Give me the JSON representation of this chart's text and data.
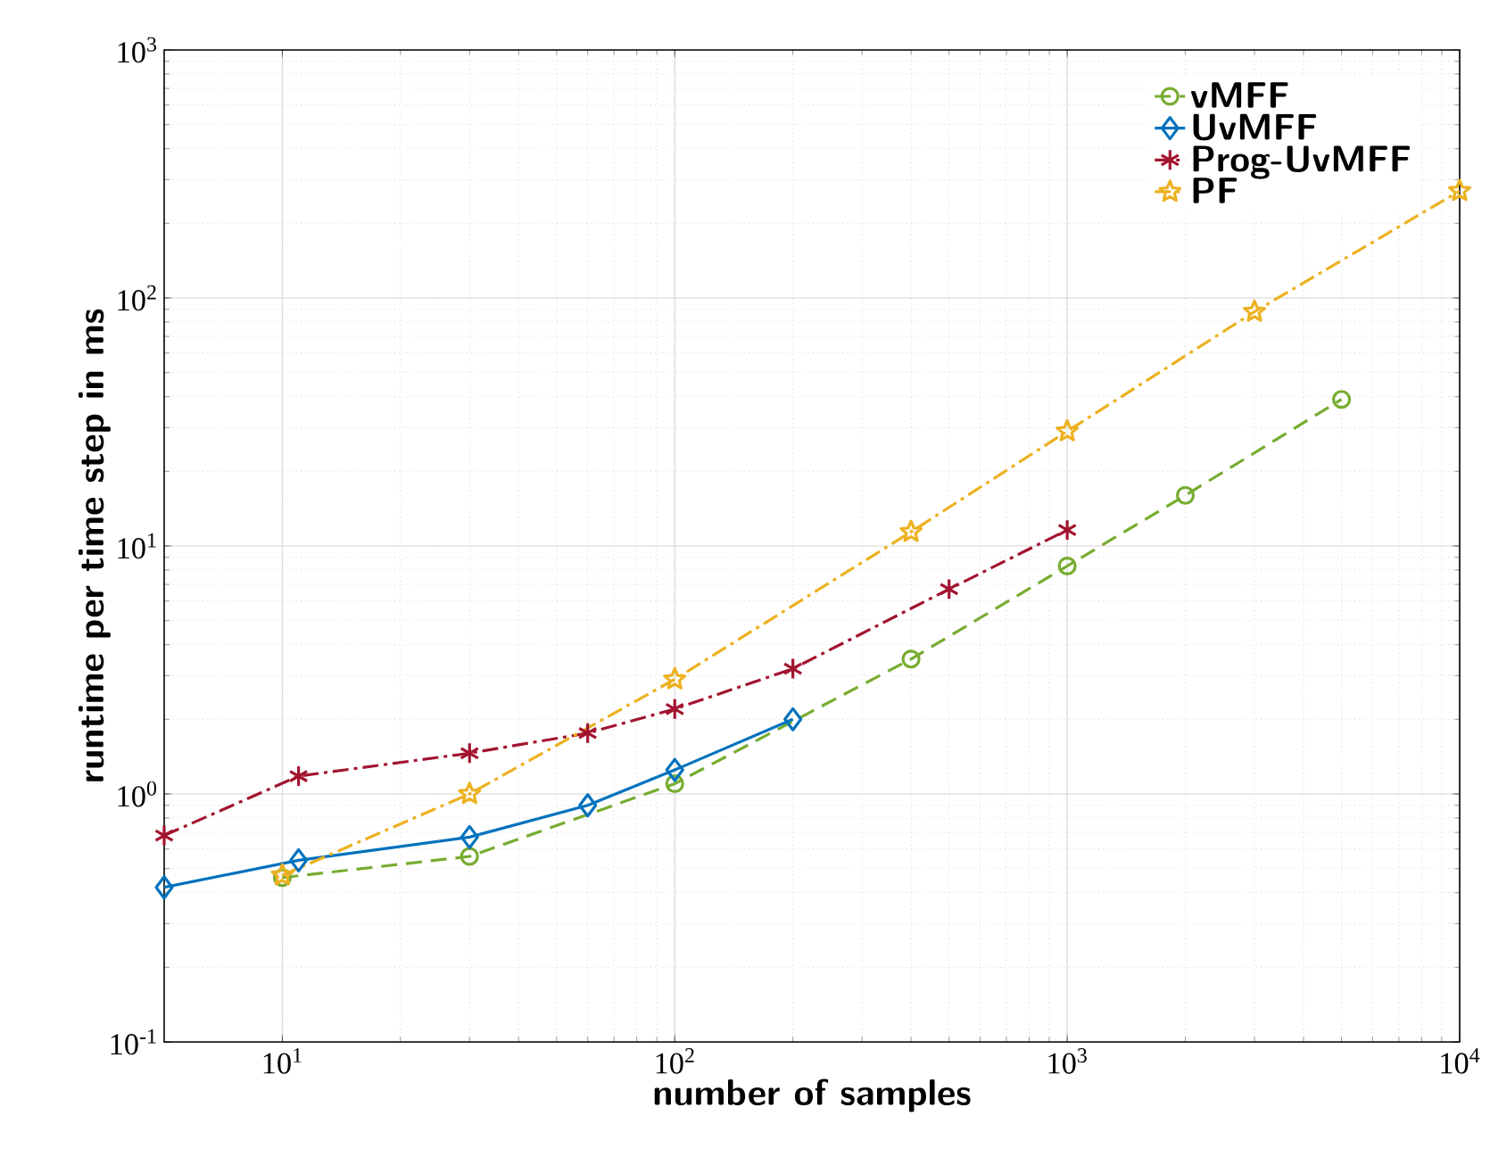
{
  "chart_data": {
    "type": "line",
    "xlabel": "number of samples",
    "ylabel": "runtime per time step in ms",
    "log": "xy",
    "grid": true,
    "legend": "top right",
    "xlim": [
      5,
      10000
    ],
    "ylim": [
      0.1,
      1000
    ],
    "xticks": [
      {
        "value": 10,
        "label": "10$^{1}$"
      },
      {
        "value": 100,
        "label": "10$^{2}$"
      },
      {
        "value": 1000,
        "label": "10$^{3}$"
      },
      {
        "value": 10000,
        "label": "10$^{4}$"
      }
    ],
    "yticks": [
      {
        "value": 0.1,
        "label": "10$^{-1}$"
      },
      {
        "value": 1,
        "label": "10$^{0}$"
      },
      {
        "value": 10,
        "label": "10$^{1}$"
      },
      {
        "value": 100,
        "label": "10$^{2}$"
      },
      {
        "value": 1000,
        "label": "10$^{3}$"
      }
    ],
    "series": [
      {
        "name": "vMFF",
        "color": "#77ac30",
        "marker": "circle",
        "line_style": "dashed",
        "x": [
          10,
          30,
          100,
          400,
          1000,
          2000,
          5000
        ],
        "values": [
          0.46,
          0.56,
          1.1,
          3.5,
          8.3,
          16,
          39
        ]
      },
      {
        "name": "UvMFF",
        "color": "#0072bd",
        "marker": "diamond",
        "line_style": "solid",
        "x": [
          5,
          11,
          30,
          60,
          100,
          200
        ],
        "values": [
          0.42,
          0.54,
          0.67,
          0.9,
          1.25,
          2.0
        ]
      },
      {
        "name": "Prog-UvMFF",
        "color": "#a2142f",
        "marker": "cross",
        "line_style": "dashdot",
        "x": [
          5,
          11,
          30,
          60,
          100,
          200,
          500,
          1000
        ],
        "values": [
          0.68,
          1.18,
          1.46,
          1.76,
          2.2,
          3.2,
          6.7,
          11.6
        ]
      },
      {
        "name": "PF",
        "color": "#edb120",
        "marker": "star",
        "line_style": "dashdot",
        "x": [
          10,
          30,
          100,
          400,
          1000,
          3000,
          10000
        ],
        "values": [
          0.47,
          1.0,
          2.9,
          11.4,
          29,
          88,
          270
        ]
      }
    ]
  }
}
